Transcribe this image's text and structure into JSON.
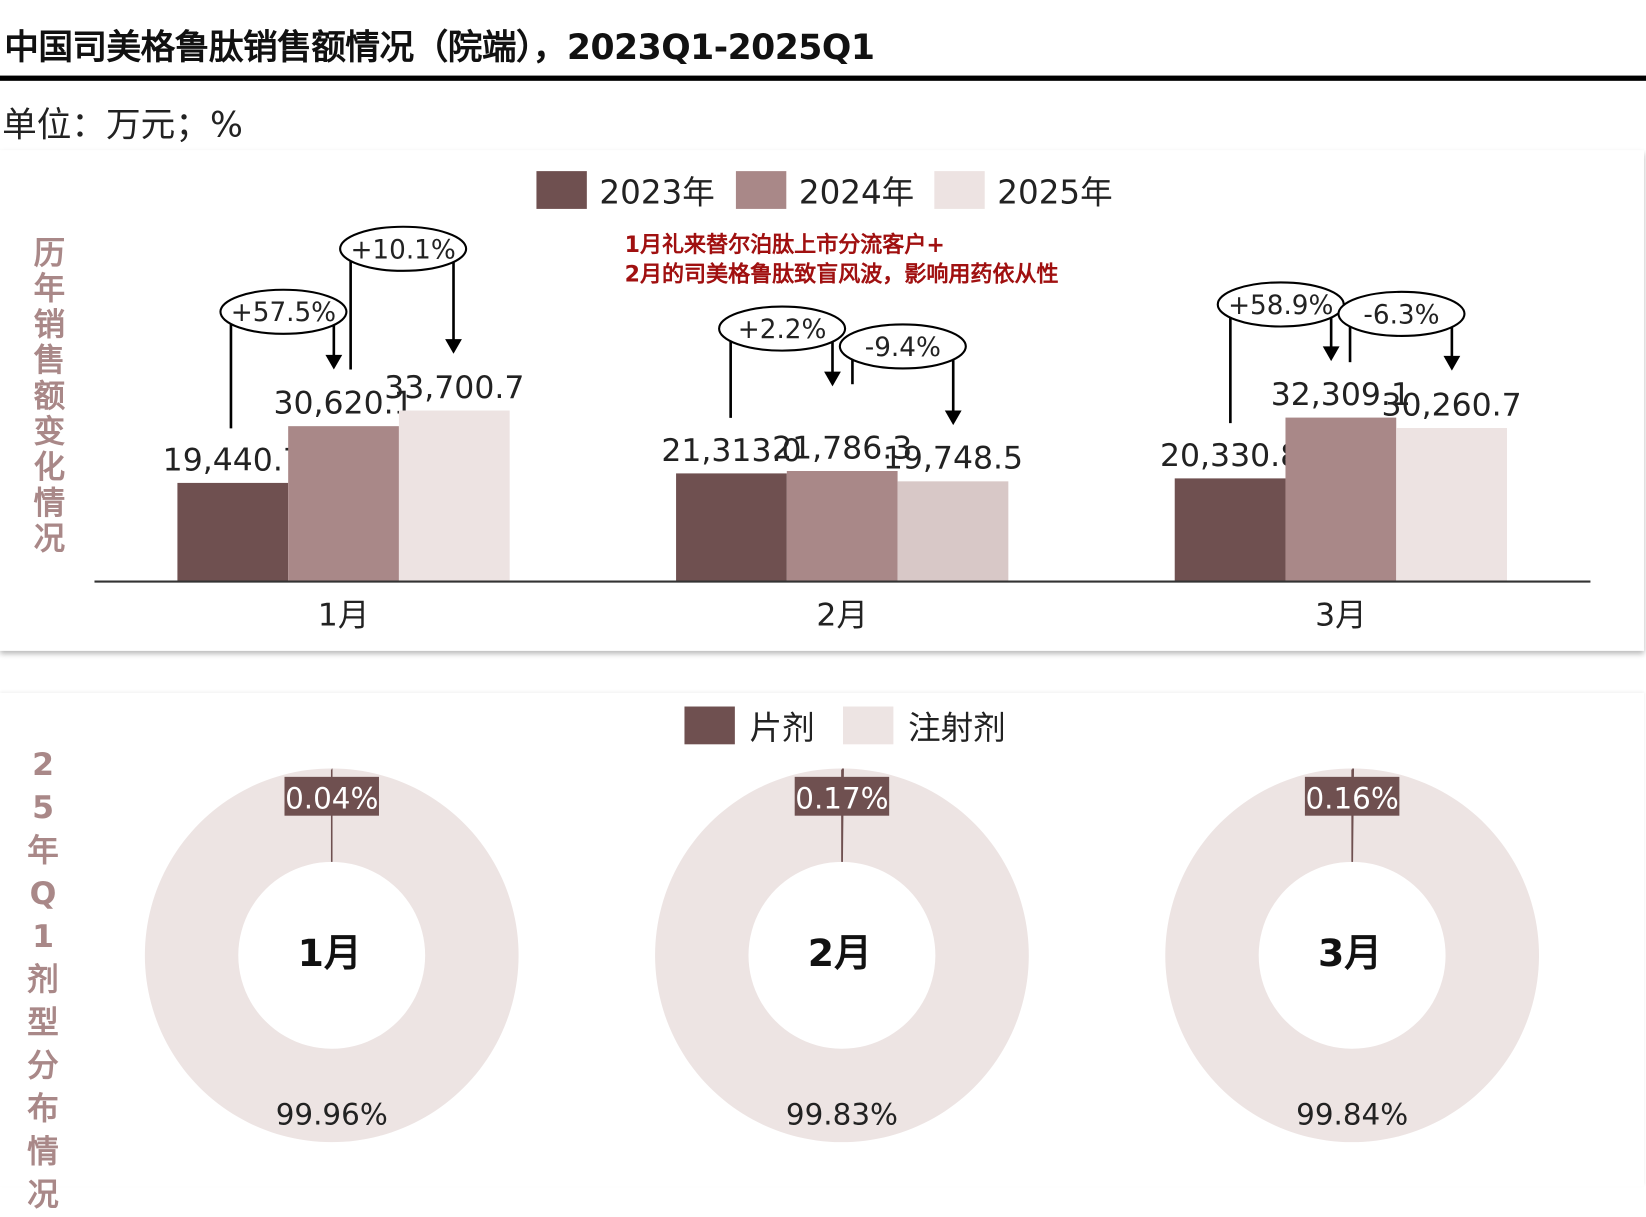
{
  "title": "中国司美格鲁肽销售额情况（院端），2023Q1-2025Q1",
  "unit": "单位：万元；%",
  "colors": {
    "y2023": "#6f5050",
    "y2024": "#a98888",
    "y2025": "#ede3e2",
    "y2025_feb": "#d8c8c7",
    "annotation": "#a01010",
    "injection": "#ede4e3",
    "tablet": "#6f5050",
    "side_label": "#a98888"
  },
  "chart_data": [
    {
      "type": "bar",
      "side_label": "历年销售额变化情况",
      "legend": [
        "2023年",
        "2024年",
        "2025年"
      ],
      "legend_position": "top",
      "categories": [
        "1月",
        "2月",
        "3月"
      ],
      "series": [
        {
          "name": "2023年",
          "values": [
            19440.7,
            21313.0,
            20330.8
          ],
          "labels": [
            "19,440.7",
            "21,313.0",
            "20,330.8"
          ]
        },
        {
          "name": "2024年",
          "values": [
            30620.1,
            21786.3,
            32309.1
          ],
          "labels": [
            "30,620.1",
            "21,786.3",
            "32,309.1"
          ]
        },
        {
          "name": "2025年",
          "values": [
            33700.7,
            19748.5,
            30260.7
          ],
          "labels": [
            "33,700.7",
            "19,748.5",
            "30,260.7"
          ]
        }
      ],
      "growth": [
        [
          "+57.5%",
          "+10.1%"
        ],
        [
          "+2.2%",
          "-9.4%"
        ],
        [
          "+58.9%",
          "-6.3%"
        ]
      ],
      "annotation": [
        "1月礼来替尔泊肽上市分流客户+",
        "2月的司美格鲁肽致盲风波，影响用药依从性"
      ],
      "grid": false
    },
    {
      "type": "pie",
      "donut": true,
      "side_label": "25年Q1剂型分布情况",
      "legend": [
        "片剂",
        "注射剂"
      ],
      "legend_position": "top",
      "charts": [
        {
          "center": "1月",
          "tablet": 0.04,
          "injection": 99.96,
          "tablet_label": "0.04%",
          "injection_label": "99.96%"
        },
        {
          "center": "2月",
          "tablet": 0.17,
          "injection": 99.83,
          "tablet_label": "0.17%",
          "injection_label": "99.83%"
        },
        {
          "center": "3月",
          "tablet": 0.16,
          "injection": 99.84,
          "tablet_label": "0.16%",
          "injection_label": "99.84%"
        }
      ]
    }
  ]
}
